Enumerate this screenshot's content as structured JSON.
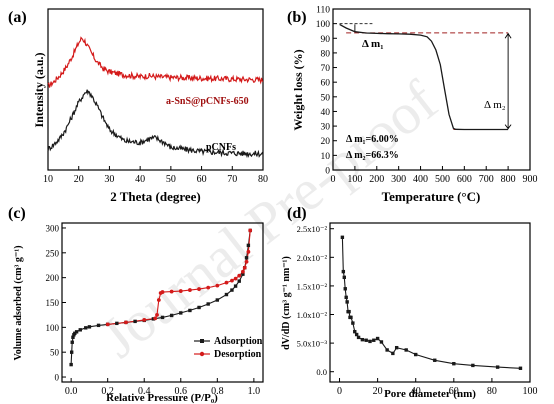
{
  "watermark": "Journal Pre-proof",
  "colors": {
    "black": "#1a1a1a",
    "red": "#d41a1a",
    "dash_red": "#a02020"
  },
  "chart_data": [
    {
      "panel": "(a)",
      "type": "line",
      "xlabel": "2 Theta (degree)",
      "ylabel": "Intensity (a.u.)",
      "xlim": [
        10,
        80
      ],
      "xticks": [
        "10",
        "20",
        "30",
        "40",
        "50",
        "60",
        "70",
        "80"
      ],
      "series": [
        {
          "name": "a-SnS@pCNFs-650",
          "color": "#d41a1a",
          "x": [
            10,
            12,
            14,
            16,
            18,
            20,
            21,
            22,
            24,
            26,
            28,
            30,
            35,
            40,
            43,
            45,
            50,
            60,
            70,
            80
          ],
          "y": [
            0.52,
            0.55,
            0.59,
            0.64,
            0.71,
            0.79,
            0.82,
            0.8,
            0.73,
            0.67,
            0.63,
            0.61,
            0.59,
            0.58,
            0.585,
            0.58,
            0.575,
            0.57,
            0.565,
            0.56
          ]
        },
        {
          "name": "pCNFs",
          "color": "#1a1a1a",
          "x": [
            10,
            12,
            14,
            16,
            18,
            20,
            22,
            23,
            24,
            26,
            28,
            30,
            35,
            40,
            43,
            45,
            48,
            50,
            60,
            70,
            80
          ],
          "y": [
            0.13,
            0.16,
            0.2,
            0.26,
            0.34,
            0.42,
            0.48,
            0.49,
            0.47,
            0.4,
            0.32,
            0.25,
            0.18,
            0.17,
            0.195,
            0.2,
            0.17,
            0.14,
            0.115,
            0.105,
            0.1
          ]
        }
      ]
    },
    {
      "panel": "(b)",
      "type": "line",
      "xlabel": "Temperature (°C)",
      "ylabel": "Weight loss (%)",
      "xlim": [
        0,
        900
      ],
      "ylim": [
        0,
        110
      ],
      "xticks": [
        "0",
        "100",
        "200",
        "300",
        "400",
        "500",
        "600",
        "700",
        "800",
        "900"
      ],
      "yticks": [
        "0",
        "10",
        "20",
        "30",
        "40",
        "50",
        "60",
        "70",
        "80",
        "90",
        "100",
        "110"
      ],
      "annotations": [
        "Δ m₁",
        "Δ m₂",
        "Δ m₁=6.00%",
        "Δ m₂=66.3%"
      ],
      "series": [
        {
          "name": "",
          "color": "#1a1a1a",
          "x": [
            30,
            60,
            100,
            150,
            200,
            250,
            300,
            350,
            400,
            430,
            450,
            470,
            490,
            510,
            530,
            550,
            560,
            600,
            700,
            800
          ],
          "y": [
            99.5,
            97,
            94.5,
            93.6,
            93.3,
            93.1,
            93.0,
            92.8,
            92.2,
            91,
            88,
            82,
            72,
            55,
            38,
            28.5,
            27.8,
            27.7,
            27.7,
            27.7
          ]
        }
      ]
    },
    {
      "panel": "(c)",
      "type": "line",
      "xlabel": "Relative Pressure (P/P₀)",
      "ylabel": "Volume adsorbed (cm³ g⁻¹)",
      "xlim": [
        0.0,
        1.0
      ],
      "ylim": [
        0,
        300
      ],
      "xticks": [
        "0.0",
        "0.2",
        "0.4",
        "0.6",
        "0.8",
        "1.0"
      ],
      "yticks": [
        "0",
        "50",
        "100",
        "150",
        "200",
        "250",
        "300"
      ],
      "series": [
        {
          "name": "Adsorption",
          "color": "#1a1a1a",
          "x": [
            0.0,
            0.003,
            0.006,
            0.01,
            0.015,
            0.02,
            0.03,
            0.05,
            0.08,
            0.1,
            0.15,
            0.2,
            0.25,
            0.3,
            0.35,
            0.4,
            0.45,
            0.5,
            0.55,
            0.6,
            0.65,
            0.7,
            0.75,
            0.8,
            0.85,
            0.88,
            0.9,
            0.92,
            0.94,
            0.95,
            0.96,
            0.97,
            0.98
          ],
          "y": [
            25,
            50,
            70,
            80,
            85,
            88,
            91,
            95,
            99,
            101,
            104,
            106,
            108,
            110,
            112,
            114,
            117,
            120,
            124,
            129,
            134,
            140,
            147,
            155,
            166,
            175,
            183,
            193,
            207,
            220,
            240,
            265,
            295
          ]
        },
        {
          "name": "Desorption",
          "color": "#d41a1a",
          "x": [
            0.98,
            0.97,
            0.96,
            0.95,
            0.94,
            0.92,
            0.9,
            0.88,
            0.85,
            0.8,
            0.75,
            0.7,
            0.65,
            0.6,
            0.55,
            0.5,
            0.49,
            0.48,
            0.47,
            0.46,
            0.4,
            0.3,
            0.2
          ],
          "y": [
            295,
            252,
            232,
            220,
            212,
            204,
            198,
            194,
            190,
            184,
            180,
            177,
            175,
            173,
            172,
            171,
            169,
            155,
            125,
            118,
            115,
            110,
            106
          ]
        }
      ]
    },
    {
      "panel": "(d)",
      "type": "line",
      "xlabel": "Pore diameter (nm)",
      "ylabel": "dV/dD (cm³ g⁻¹ nm⁻¹)",
      "xlim": [
        0,
        100
      ],
      "ylim": [
        -0.0018,
        0.026
      ],
      "xticks": [
        "0",
        "20",
        "40",
        "60",
        "80",
        "100"
      ],
      "yticks": [
        "0.0",
        "5.0x10⁻³",
        "1.0x10⁻²",
        "1.5x10⁻²",
        "2.0x10⁻²",
        "2.5x10⁻²"
      ],
      "series": [
        {
          "name": "",
          "color": "#1a1a1a",
          "x": [
            1.5,
            2,
            2.5,
            3,
            3.5,
            4,
            4.5,
            5,
            5.5,
            6,
            7,
            8,
            9,
            10,
            12,
            14,
            16,
            18,
            20,
            22,
            25,
            28,
            30,
            35,
            40,
            50,
            60,
            70,
            83,
            95
          ],
          "y": [
            0.0235,
            0.0175,
            0.0165,
            0.0145,
            0.013,
            0.0122,
            0.0105,
            0.0105,
            0.0095,
            0.0095,
            0.0085,
            0.007,
            0.0065,
            0.006,
            0.0056,
            0.0055,
            0.0053,
            0.0055,
            0.0058,
            0.0052,
            0.0038,
            0.0032,
            0.0042,
            0.0038,
            0.003,
            0.002,
            0.0014,
            0.0011,
            0.0008,
            0.0006
          ]
        }
      ]
    }
  ]
}
